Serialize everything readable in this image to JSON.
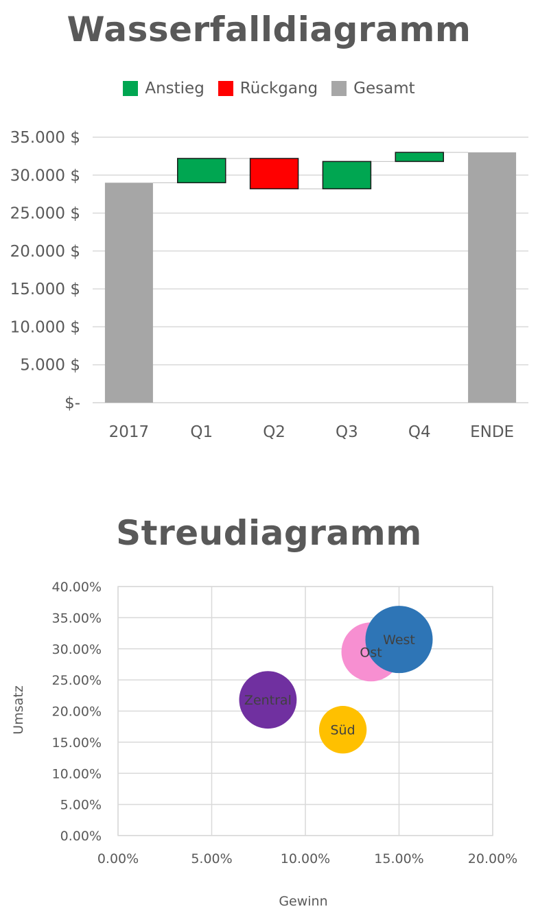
{
  "chart_data": [
    {
      "type": "bar",
      "subtype": "waterfall",
      "title": "Wasserfalldiagramm",
      "legend": {
        "placement": "top",
        "items": [
          {
            "name": "Anstieg",
            "color": "#00A651"
          },
          {
            "name": "Rückgang",
            "color": "#FF0000"
          },
          {
            "name": "Gesamt",
            "color": "#A6A6A6"
          }
        ]
      },
      "categories": [
        "2017",
        "Q1",
        "Q2",
        "Q3",
        "Q4",
        "ENDE"
      ],
      "bars": [
        {
          "category": "2017",
          "kind": "total",
          "start": 0,
          "end": 29000
        },
        {
          "category": "Q1",
          "kind": "increase",
          "start": 29000,
          "end": 32200
        },
        {
          "category": "Q2",
          "kind": "decrease",
          "start": 32200,
          "end": 28200
        },
        {
          "category": "Q3",
          "kind": "increase",
          "start": 28200,
          "end": 31800
        },
        {
          "category": "Q4",
          "kind": "increase",
          "start": 31800,
          "end": 33000
        },
        {
          "category": "ENDE",
          "kind": "total",
          "start": 0,
          "end": 33000
        }
      ],
      "ylim": [
        0,
        35000
      ],
      "yticks": [
        {
          "value": 0,
          "label": "$-"
        },
        {
          "value": 5000,
          "label": "5.000 $"
        },
        {
          "value": 10000,
          "label": "10.000 $"
        },
        {
          "value": 15000,
          "label": "15.000 $"
        },
        {
          "value": 20000,
          "label": "20.000 $"
        },
        {
          "value": 25000,
          "label": "25.000 $"
        },
        {
          "value": 30000,
          "label": "30.000 $"
        },
        {
          "value": 35000,
          "label": "35.000 $"
        }
      ],
      "grid": true,
      "xlabel": "",
      "ylabel": ""
    },
    {
      "type": "scatter",
      "subtype": "bubble",
      "title": "Streudiagramm",
      "xlabel": "Gewinn",
      "ylabel": "Umsatz",
      "xlim": [
        0,
        0.2
      ],
      "ylim": [
        0,
        0.4
      ],
      "xticks": [
        {
          "value": 0,
          "label": "0.00%"
        },
        {
          "value": 0.05,
          "label": "5.00%"
        },
        {
          "value": 0.1,
          "label": "10.00%"
        },
        {
          "value": 0.15,
          "label": "15.00%"
        },
        {
          "value": 0.2,
          "label": "20.00%"
        }
      ],
      "yticks": [
        {
          "value": 0,
          "label": "0.00%"
        },
        {
          "value": 0.05,
          "label": "5.00%"
        },
        {
          "value": 0.1,
          "label": "10.00%"
        },
        {
          "value": 0.15,
          "label": "15.00%"
        },
        {
          "value": 0.2,
          "label": "20.00%"
        },
        {
          "value": 0.25,
          "label": "25.00%"
        },
        {
          "value": 0.3,
          "label": "30.00%"
        },
        {
          "value": 0.35,
          "label": "35.00%"
        },
        {
          "value": 0.4,
          "label": "40.00%"
        }
      ],
      "grid": true,
      "points": [
        {
          "label": "Ost",
          "x": 0.135,
          "y": 0.295,
          "size": 1.0,
          "color": "#F78FD1"
        },
        {
          "label": "West",
          "x": 0.15,
          "y": 0.315,
          "size": 1.3,
          "color": "#2E75B6"
        },
        {
          "label": "Zentral",
          "x": 0.08,
          "y": 0.218,
          "size": 0.95,
          "color": "#7030A0"
        },
        {
          "label": "Süd",
          "x": 0.12,
          "y": 0.17,
          "size": 0.65,
          "color": "#FFC000"
        }
      ]
    }
  ]
}
